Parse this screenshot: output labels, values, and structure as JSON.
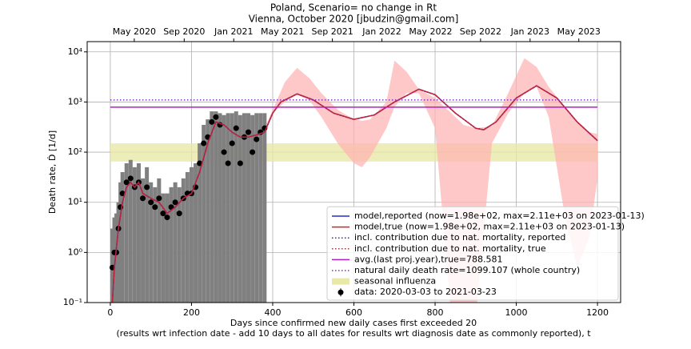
{
  "chart_data": {
    "type": "line",
    "title": "Poland, Scenario= no change in Rt",
    "subtitle": "Vienna, October 2020 [jbudzin@gmail.com]",
    "x_label": "Days since confirmed new daily cases first exceeded 20",
    "x_label_2": "(results wrt infection date - add 10 days to all dates for results wrt diagnosis date as commonly reported), t",
    "y_label": "Death rate, Ḋ [1/d]",
    "y_scale": "log",
    "grid": true,
    "legend": "lower right",
    "xlim": [
      -57,
      1257
    ],
    "ylim": [
      0.1,
      16000
    ],
    "xticks": [
      0,
      200,
      400,
      600,
      800,
      1000,
      1200
    ],
    "yticks": [
      {
        "value": 0.1,
        "label": "10⁻¹"
      },
      {
        "value": 1,
        "label": "10⁰"
      },
      {
        "value": 10,
        "label": "10¹"
      },
      {
        "value": 100,
        "label": "10²"
      },
      {
        "value": 1000,
        "label": "10³"
      },
      {
        "value": 10000,
        "label": "10⁴"
      }
    ],
    "x2ticks": [
      {
        "value": 59,
        "label": "May 2020"
      },
      {
        "value": 182,
        "label": "Sep 2020"
      },
      {
        "value": 304,
        "label": "Jan 2021"
      },
      {
        "value": 424,
        "label": "May 2021"
      },
      {
        "value": 547,
        "label": "Sep 2021"
      },
      {
        "value": 669,
        "label": "Jan 2022"
      },
      {
        "value": 789,
        "label": "May 2022"
      },
      {
        "value": 912,
        "label": "Sep 2022"
      },
      {
        "value": 1034,
        "label": "Jan 2023"
      },
      {
        "value": 1154,
        "label": "May 2023"
      }
    ],
    "x": [
      5,
      10,
      20,
      30,
      40,
      50,
      60,
      70,
      80,
      100,
      120,
      140,
      160,
      180,
      200,
      220,
      240,
      260,
      280,
      300,
      320,
      340,
      360,
      380,
      400,
      420,
      460,
      500,
      550,
      600,
      650,
      700,
      760,
      800,
      850,
      900,
      920,
      950,
      1000,
      1050,
      1100,
      1150,
      1200
    ],
    "series": [
      {
        "name": "model,reported (now=1.98e+02, max=2.11e+03 on 2023-01-13)",
        "color": "#2a2ac8",
        "style": "solid",
        "values": [
          0.1,
          0.5,
          3,
          10,
          20,
          25,
          20,
          25,
          15,
          12,
          10,
          6,
          8,
          12,
          15,
          40,
          150,
          400,
          350,
          250,
          200,
          200,
          220,
          250,
          600,
          1000,
          1450,
          1100,
          600,
          450,
          550,
          1000,
          1800,
          1400,
          600,
          300,
          280,
          400,
          1200,
          2110,
          1200,
          400,
          170
        ]
      },
      {
        "name": "model,true (now=1.98e+02, max=2.11e+03 on 2023-01-13)",
        "color": "#dd2020",
        "style": "solid",
        "values": [
          0.1,
          0.5,
          3,
          10,
          20,
          25,
          20,
          25,
          15,
          12,
          10,
          6,
          8,
          12,
          15,
          40,
          150,
          400,
          350,
          250,
          200,
          200,
          220,
          250,
          600,
          1000,
          1450,
          1100,
          600,
          450,
          550,
          1000,
          1800,
          1400,
          600,
          300,
          280,
          400,
          1200,
          2110,
          1200,
          400,
          170
        ]
      },
      {
        "name": "incl. contribution due to nat. mortality, reported",
        "color": "#2a2ac8",
        "style": "dotted",
        "values": [
          0.1,
          0.5,
          3,
          10,
          20,
          25,
          20,
          25,
          15,
          12,
          10,
          6,
          8,
          12,
          15,
          40,
          150,
          400,
          350,
          250,
          200,
          200,
          220,
          250,
          600,
          1000,
          1450,
          1100,
          600,
          450,
          550,
          1000,
          1800,
          1400,
          600,
          300,
          280,
          400,
          1200,
          2110,
          1200,
          400,
          170
        ]
      },
      {
        "name": "incl. contribution due to nat. mortality, true",
        "color": "#dd2020",
        "style": "dotted",
        "values": [
          0.1,
          0.5,
          3,
          10,
          20,
          25,
          20,
          25,
          15,
          12,
          10,
          6,
          8,
          12,
          15,
          40,
          150,
          400,
          350,
          250,
          200,
          200,
          220,
          250,
          600,
          1000,
          1450,
          1100,
          600,
          450,
          550,
          1000,
          1800,
          1400,
          600,
          300,
          280,
          400,
          1200,
          2110,
          1200,
          400,
          170
        ]
      }
    ],
    "hlines": [
      {
        "name": "avg.(last proj.year),true=788.581",
        "value": 788.581,
        "color": "#b020c8",
        "style": "solid",
        "span": [
          0,
          1200
        ]
      },
      {
        "name": "natural daily death rate=1099.107 (whole country)",
        "value": 1099.107,
        "color": "#8030c0",
        "style": "dotted",
        "span": [
          0,
          1200
        ]
      }
    ],
    "bands": [
      {
        "name": "seasonal influenza",
        "lower": 65,
        "upper": 150,
        "color": "#e8e8a8",
        "span": [
          0,
          1200
        ]
      }
    ],
    "uncertainty": {
      "color": "#ffb0b0",
      "x": [
        380,
        400,
        430,
        460,
        490,
        520,
        560,
        600,
        620,
        640,
        680,
        700,
        730,
        760,
        800,
        840,
        870,
        900,
        940,
        980,
        1020,
        1050,
        1080,
        1120,
        1150,
        1180,
        1200
      ],
      "lower": [
        250,
        600,
        1000,
        1400,
        1100,
        500,
        150,
        60,
        50,
        80,
        300,
        800,
        1500,
        1500,
        300,
        0.05,
        0.05,
        0.05,
        150,
        600,
        1500,
        2000,
        500,
        5,
        0.5,
        2,
        30
      ],
      "upper": [
        300,
        700,
        2500,
        4800,
        3000,
        1500,
        700,
        450,
        420,
        450,
        1000,
        6700,
        4000,
        1800,
        1200,
        600,
        350,
        300,
        330,
        1500,
        7500,
        5000,
        2000,
        800,
        400,
        250,
        230
      ]
    },
    "points": {
      "name": "data: 2020-03-03 to 2021-03-23",
      "color": "#000000",
      "error_color": "#808080",
      "x": [
        5,
        10,
        15,
        20,
        25,
        30,
        40,
        50,
        60,
        70,
        80,
        90,
        100,
        110,
        120,
        130,
        140,
        150,
        160,
        170,
        180,
        190,
        200,
        210,
        220,
        230,
        240,
        250,
        260,
        270,
        280,
        290,
        300,
        310,
        320,
        330,
        340,
        350,
        360,
        370,
        380
      ],
      "values": [
        0.5,
        1,
        1,
        3,
        8,
        15,
        25,
        30,
        20,
        25,
        12,
        20,
        10,
        8,
        12,
        6,
        5,
        8,
        10,
        6,
        12,
        15,
        15,
        20,
        60,
        150,
        200,
        400,
        500,
        350,
        100,
        60,
        150,
        300,
        60,
        200,
        250,
        100,
        180,
        250,
        300
      ],
      "err_lower": [
        0.1,
        0.1,
        0.1,
        0.1,
        0.1,
        0.1,
        0.1,
        0.1,
        0.1,
        0.1,
        0.1,
        0.1,
        0.1,
        0.1,
        0.1,
        0.1,
        0.1,
        0.1,
        0.1,
        0.1,
        0.1,
        0.1,
        0.1,
        0.1,
        0.1,
        0.1,
        0.1,
        0.1,
        0.1,
        0.1,
        0.1,
        0.1,
        0.1,
        0.1,
        0.1,
        0.1,
        0.1,
        0.1,
        0.1,
        0.1,
        0.1
      ],
      "err_upper": [
        3,
        5,
        6,
        10,
        25,
        40,
        60,
        70,
        50,
        60,
        30,
        50,
        25,
        20,
        30,
        15,
        15,
        20,
        25,
        20,
        30,
        40,
        50,
        60,
        150,
        350,
        450,
        650,
        650,
        600,
        550,
        600,
        600,
        650,
        550,
        600,
        600,
        550,
        600,
        600,
        600
      ]
    }
  }
}
